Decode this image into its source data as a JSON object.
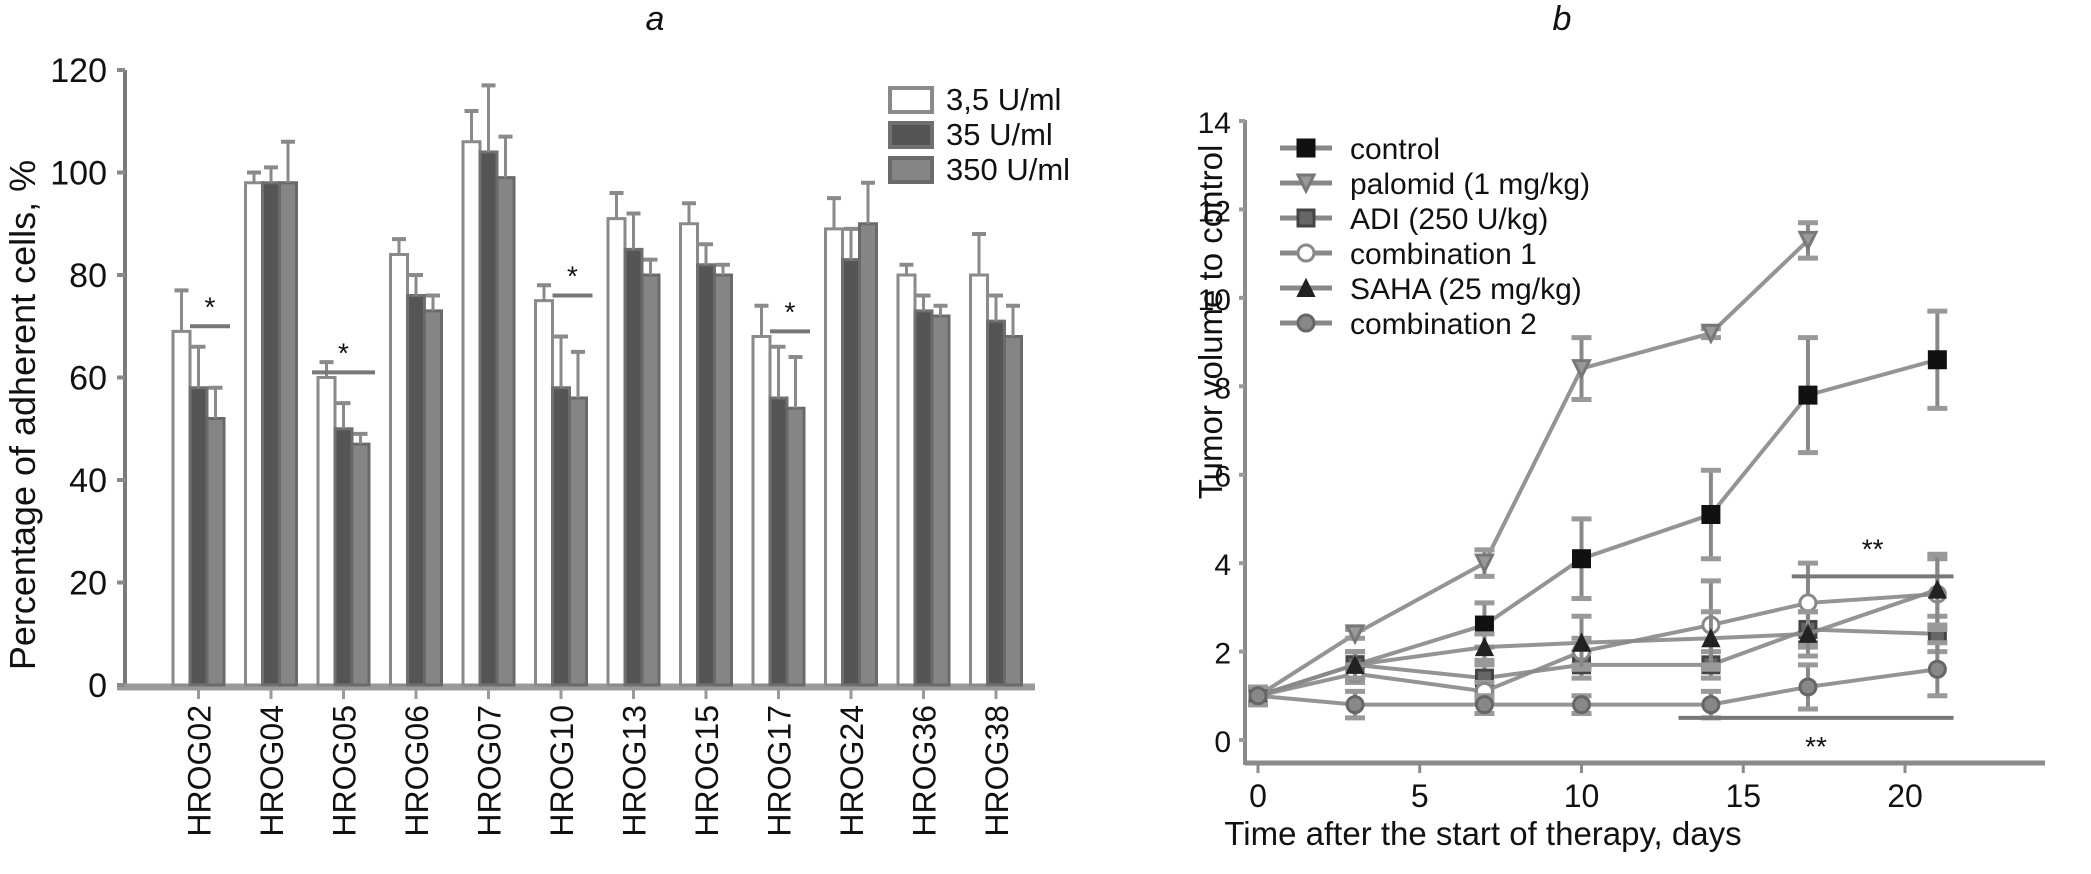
{
  "chart_data": [
    {
      "panel_label": "a",
      "type": "bar",
      "title": "",
      "xlabel": "",
      "ylabel": "Percentage of adherent cells, %",
      "ylim": [
        0,
        120
      ],
      "yticks": [
        0,
        20,
        40,
        60,
        80,
        100,
        120
      ],
      "grid": false,
      "legend_position": "top-right",
      "categories": [
        "HROG02",
        "HROG04",
        "HROG05",
        "HROG06",
        "HROG07",
        "HROG10",
        "HROG13",
        "HROG15",
        "HROG17",
        "HROG24",
        "HROG36",
        "HROG38"
      ],
      "series": [
        {
          "name": "3,5 U/ml",
          "color": "#ffffff",
          "values": [
            69,
            98,
            60,
            84,
            106,
            75,
            91,
            90,
            68,
            89,
            80,
            80
          ],
          "errors": [
            8,
            2,
            3,
            3,
            6,
            3,
            5,
            4,
            6,
            6,
            2,
            8
          ]
        },
        {
          "name": "35 U/ml",
          "color": "#555555",
          "values": [
            58,
            98,
            50,
            76,
            104,
            58,
            85,
            82,
            56,
            83,
            73,
            71
          ],
          "errors": [
            8,
            3,
            5,
            4,
            13,
            10,
            7,
            4,
            10,
            6,
            3,
            5
          ]
        },
        {
          "name": "350 U/ml",
          "color": "#808080",
          "values": [
            52,
            98,
            47,
            73,
            99,
            56,
            80,
            80,
            54,
            90,
            72,
            68
          ],
          "errors": [
            6,
            8,
            2,
            3,
            8,
            9,
            3,
            2,
            10,
            8,
            2,
            6
          ]
        }
      ],
      "annotations": [
        {
          "text": "*",
          "category": "HROG02"
        },
        {
          "text": "*",
          "category": "HROG05"
        },
        {
          "text": "*",
          "category": "HROG10"
        },
        {
          "text": "*",
          "category": "HROG17"
        }
      ]
    },
    {
      "panel_label": "b",
      "type": "line",
      "title": "",
      "xlabel": "Time after the start of therapy, days",
      "ylabel": "Tumor volume to control",
      "xlim": [
        -0.5,
        22
      ],
      "ylim": [
        -0.3,
        14
      ],
      "xticks": [
        0,
        5,
        10,
        15,
        20
      ],
      "yticks": [
        0,
        2,
        4,
        6,
        8,
        10,
        12,
        14
      ],
      "grid": false,
      "legend_position": "top-left",
      "series": [
        {
          "name": "control",
          "marker": "square-filled",
          "color": "#111111",
          "x": [
            0,
            3,
            7,
            10,
            14,
            17,
            21
          ],
          "y": [
            1.0,
            1.7,
            2.6,
            4.1,
            5.1,
            7.8,
            8.6
          ],
          "errors": [
            0.2,
            0.3,
            0.5,
            0.9,
            1.0,
            1.3,
            1.1
          ]
        },
        {
          "name": "palomid (1 mg/kg)",
          "marker": "triangle-down",
          "color": "#777777",
          "x": [
            0,
            3,
            7,
            10,
            14,
            17
          ],
          "y": [
            1.0,
            2.4,
            4.0,
            8.4,
            9.2,
            11.3
          ],
          "errors": [
            0.2,
            0.1,
            0.3,
            0.7,
            0.1,
            0.4
          ]
        },
        {
          "name": "ADI (250 U/kg)",
          "marker": "square",
          "color": "#444444",
          "x": [
            0,
            3,
            7,
            10,
            14,
            17,
            21
          ],
          "y": [
            1.0,
            1.7,
            1.4,
            1.7,
            1.7,
            2.5,
            2.4
          ],
          "errors": [
            0.2,
            0.3,
            0.3,
            0.3,
            0.3,
            0.4,
            0.4
          ]
        },
        {
          "name": "combination 1",
          "marker": "circle-open",
          "color": "#888888",
          "x": [
            0,
            3,
            7,
            10,
            14,
            17,
            21
          ],
          "y": [
            1.0,
            1.5,
            1.1,
            2.0,
            2.6,
            3.1,
            3.3
          ],
          "errors": [
            0.2,
            0.2,
            0.2,
            0.3,
            1.0,
            0.9,
            0.8
          ]
        },
        {
          "name": "SAHA (25 mg/kg)",
          "marker": "triangle-up",
          "color": "#222222",
          "x": [
            0,
            3,
            7,
            10,
            14,
            17,
            21
          ],
          "y": [
            1.0,
            1.7,
            2.1,
            2.2,
            2.3,
            2.4,
            3.4
          ],
          "errors": [
            0.2,
            0.3,
            0.3,
            0.6,
            0.6,
            0.5,
            0.8
          ]
        },
        {
          "name": "combination 2",
          "marker": "circle",
          "color": "#666666",
          "x": [
            0,
            3,
            7,
            10,
            14,
            17,
            21
          ],
          "y": [
            1.0,
            0.8,
            0.8,
            0.8,
            0.8,
            1.2,
            1.6
          ],
          "errors": [
            0.2,
            0.3,
            0.2,
            0.2,
            0.3,
            0.5,
            0.6
          ]
        }
      ],
      "annotations": [
        {
          "text": "**",
          "bracket_x": [
            16.5,
            21.5
          ],
          "bracket_y": 3.7,
          "position": "above"
        },
        {
          "text": "**",
          "bracket_x": [
            13,
            21.5
          ],
          "bracket_y": 0.5,
          "position": "below"
        }
      ]
    }
  ]
}
